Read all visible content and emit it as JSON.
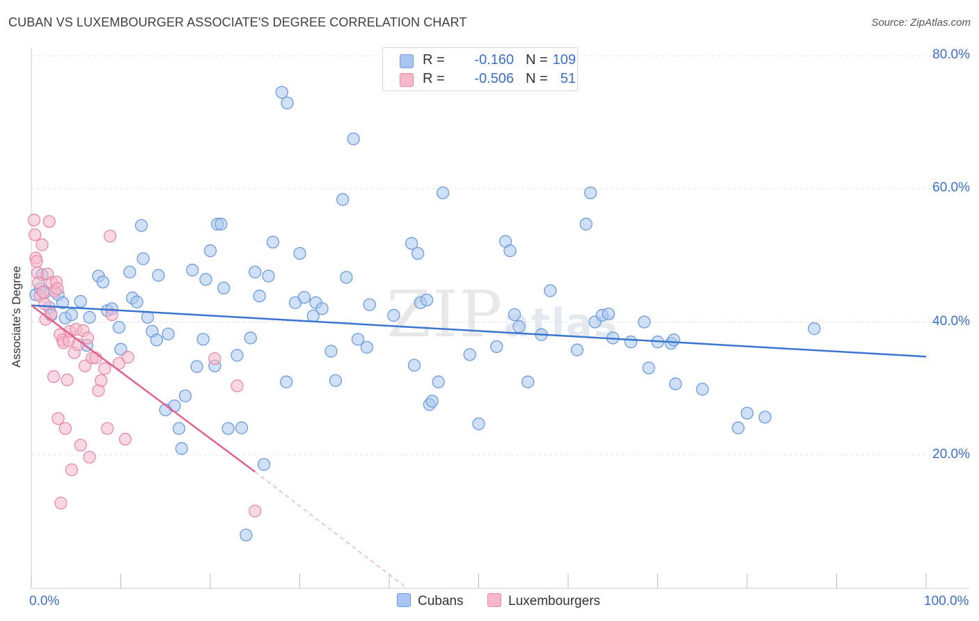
{
  "header": {
    "title": "CUBAN VS LUXEMBOURGER ASSOCIATE'S DEGREE CORRELATION CHART",
    "source": "Source: ZipAtlas.com"
  },
  "watermark": {
    "main": "ZIP",
    "small": "atlas"
  },
  "legend": {
    "rows": [
      {
        "r_label": "R =",
        "r_value": "-0.160",
        "n_label": "N =",
        "n_value": "109",
        "color": "#a9c6f0"
      },
      {
        "r_label": "R =",
        "r_value": "-0.506",
        "n_label": "N =",
        "n_value": "51",
        "color": "#f5b8cb"
      }
    ]
  },
  "bottom_legend": {
    "items": [
      {
        "label": "Cubans",
        "color": "#a9c6f0"
      },
      {
        "label": "Luxembourgers",
        "color": "#f5b8cb"
      }
    ]
  },
  "colors": {
    "cuban_fill": "#a9c6f0",
    "cuban_stroke": "#6b9be0",
    "cuban_line": "#3a75d0",
    "lux_fill": "#f5b8cb",
    "lux_stroke": "#e889a8",
    "lux_line": "#e0608c",
    "tick_label": "#3a6fcc",
    "grid": "#e2e2e2"
  },
  "chart_data": {
    "type": "scatter",
    "title": "CUBAN VS LUXEMBOURGER ASSOCIATE'S DEGREE CORRELATION CHART",
    "xlabel": "",
    "ylabel": "Associate's Degree",
    "xlim": [
      0,
      100
    ],
    "ylim": [
      0,
      80
    ],
    "x_tick_labels": [
      "0.0%",
      "100.0%"
    ],
    "y_ticks": [
      20,
      40,
      60,
      80
    ],
    "y_tick_labels": [
      "20.0%",
      "40.0%",
      "60.0%",
      "80.0%"
    ],
    "grid": true,
    "legend_position": "top-center",
    "series": [
      {
        "name": "Cubans",
        "r": -0.16,
        "n": 109,
        "trend": {
          "x": [
            0,
            100
          ],
          "y": [
            42.5,
            34.8
          ],
          "dashed_beyond": null
        },
        "points": [
          [
            0.5,
            44.1
          ],
          [
            1.0,
            45.0
          ],
          [
            1.2,
            47.1
          ],
          [
            1.5,
            44.4
          ],
          [
            2.0,
            42.2
          ],
          [
            2.2,
            41.0
          ],
          [
            3.0,
            44.1
          ],
          [
            3.5,
            42.9
          ],
          [
            3.8,
            40.6
          ],
          [
            4.5,
            41.1
          ],
          [
            5.5,
            43.1
          ],
          [
            6.2,
            36.5
          ],
          [
            6.5,
            40.7
          ],
          [
            7.5,
            46.9
          ],
          [
            8.0,
            46.0
          ],
          [
            8.5,
            41.7
          ],
          [
            9.0,
            42.0
          ],
          [
            9.8,
            39.2
          ],
          [
            10.0,
            35.9
          ],
          [
            11.0,
            47.5
          ],
          [
            11.3,
            43.6
          ],
          [
            11.8,
            43.0
          ],
          [
            12.5,
            49.5
          ],
          [
            12.3,
            54.5
          ],
          [
            13.0,
            40.7
          ],
          [
            13.5,
            38.6
          ],
          [
            14.0,
            37.3
          ],
          [
            14.2,
            47.0
          ],
          [
            15.0,
            26.8
          ],
          [
            15.3,
            38.2
          ],
          [
            16.0,
            27.4
          ],
          [
            16.5,
            24.0
          ],
          [
            16.8,
            21.0
          ],
          [
            17.2,
            28.9
          ],
          [
            18.0,
            47.8
          ],
          [
            18.5,
            33.3
          ],
          [
            19.2,
            37.4
          ],
          [
            19.5,
            46.4
          ],
          [
            20.0,
            50.7
          ],
          [
            20.5,
            33.4
          ],
          [
            20.8,
            54.7
          ],
          [
            21.2,
            54.7
          ],
          [
            21.5,
            45.1
          ],
          [
            22.0,
            24.0
          ],
          [
            23.0,
            35.0
          ],
          [
            23.5,
            24.1
          ],
          [
            24.0,
            8.0
          ],
          [
            24.5,
            37.6
          ],
          [
            25.0,
            47.5
          ],
          [
            25.5,
            43.9
          ],
          [
            26.0,
            18.6
          ],
          [
            26.5,
            46.9
          ],
          [
            27.0,
            52.0
          ],
          [
            28.5,
            31.0
          ],
          [
            28.0,
            74.5
          ],
          [
            28.6,
            72.9
          ],
          [
            29.5,
            42.9
          ],
          [
            30.0,
            50.3
          ],
          [
            30.5,
            43.7
          ],
          [
            31.5,
            40.9
          ],
          [
            31.8,
            42.9
          ],
          [
            32.5,
            42.0
          ],
          [
            33.5,
            35.6
          ],
          [
            34.0,
            31.2
          ],
          [
            34.8,
            58.4
          ],
          [
            35.2,
            46.7
          ],
          [
            36.0,
            67.5
          ],
          [
            36.5,
            37.4
          ],
          [
            37.5,
            36.2
          ],
          [
            37.8,
            42.6
          ],
          [
            40.5,
            41.0
          ],
          [
            42.5,
            51.8
          ],
          [
            42.8,
            33.5
          ],
          [
            43.2,
            50.3
          ],
          [
            43.5,
            42.9
          ],
          [
            44.2,
            43.3
          ],
          [
            44.5,
            27.6
          ],
          [
            44.8,
            28.1
          ],
          [
            45.5,
            31.0
          ],
          [
            46.0,
            59.4
          ],
          [
            49.0,
            35.1
          ],
          [
            50.0,
            24.7
          ],
          [
            52.0,
            36.3
          ],
          [
            53.0,
            52.1
          ],
          [
            53.5,
            50.7
          ],
          [
            54.0,
            41.1
          ],
          [
            54.5,
            39.3
          ],
          [
            55.5,
            31.0
          ],
          [
            57.0,
            38.1
          ],
          [
            58.0,
            44.7
          ],
          [
            61.0,
            35.8
          ],
          [
            62.0,
            54.7
          ],
          [
            62.5,
            59.4
          ],
          [
            63.0,
            40.0
          ],
          [
            63.8,
            41.0
          ],
          [
            64.5,
            41.2
          ],
          [
            65.0,
            37.6
          ],
          [
            67.0,
            37.0
          ],
          [
            68.5,
            40.0
          ],
          [
            69.0,
            33.1
          ],
          [
            70.0,
            37.0
          ],
          [
            71.5,
            36.8
          ],
          [
            71.8,
            37.3
          ],
          [
            72.0,
            30.7
          ],
          [
            75.0,
            29.9
          ],
          [
            79.0,
            24.1
          ],
          [
            80.0,
            26.3
          ],
          [
            82.0,
            25.7
          ],
          [
            87.5,
            39.0
          ]
        ]
      },
      {
        "name": "Luxembourgers",
        "r": -0.506,
        "n": 51,
        "trend": {
          "x": [
            0,
            25
          ],
          "y": [
            42.5,
            17.5
          ],
          "dashed_to": [
            42,
            0
          ]
        },
        "points": [
          [
            0.3,
            55.3
          ],
          [
            0.4,
            53.1
          ],
          [
            0.5,
            49.6
          ],
          [
            0.6,
            49.1
          ],
          [
            0.7,
            47.4
          ],
          [
            0.8,
            45.9
          ],
          [
            1.0,
            43.9
          ],
          [
            1.2,
            51.6
          ],
          [
            1.3,
            44.5
          ],
          [
            1.5,
            42.7
          ],
          [
            1.6,
            40.4
          ],
          [
            1.8,
            47.2
          ],
          [
            2.0,
            55.1
          ],
          [
            2.2,
            41.2
          ],
          [
            2.3,
            45.9
          ],
          [
            2.5,
            31.8
          ],
          [
            2.6,
            44.6
          ],
          [
            2.8,
            46.0
          ],
          [
            2.9,
            45.0
          ],
          [
            3.0,
            25.5
          ],
          [
            3.2,
            38.1
          ],
          [
            3.3,
            12.8
          ],
          [
            3.5,
            37.3
          ],
          [
            3.6,
            36.9
          ],
          [
            3.8,
            24.0
          ],
          [
            4.0,
            31.3
          ],
          [
            4.2,
            37.2
          ],
          [
            4.3,
            38.6
          ],
          [
            4.5,
            17.8
          ],
          [
            4.8,
            35.4
          ],
          [
            5.0,
            38.9
          ],
          [
            5.2,
            36.6
          ],
          [
            5.5,
            21.5
          ],
          [
            5.8,
            38.7
          ],
          [
            6.0,
            33.4
          ],
          [
            6.3,
            37.6
          ],
          [
            6.5,
            19.7
          ],
          [
            6.8,
            34.6
          ],
          [
            7.2,
            34.6
          ],
          [
            7.5,
            29.7
          ],
          [
            7.8,
            31.2
          ],
          [
            8.2,
            33.0
          ],
          [
            8.5,
            24.0
          ],
          [
            8.8,
            52.9
          ],
          [
            9.0,
            41.1
          ],
          [
            9.8,
            33.8
          ],
          [
            10.5,
            22.4
          ],
          [
            10.8,
            34.7
          ],
          [
            20.5,
            34.5
          ],
          [
            23.0,
            30.4
          ],
          [
            25.0,
            11.6
          ]
        ]
      }
    ]
  }
}
